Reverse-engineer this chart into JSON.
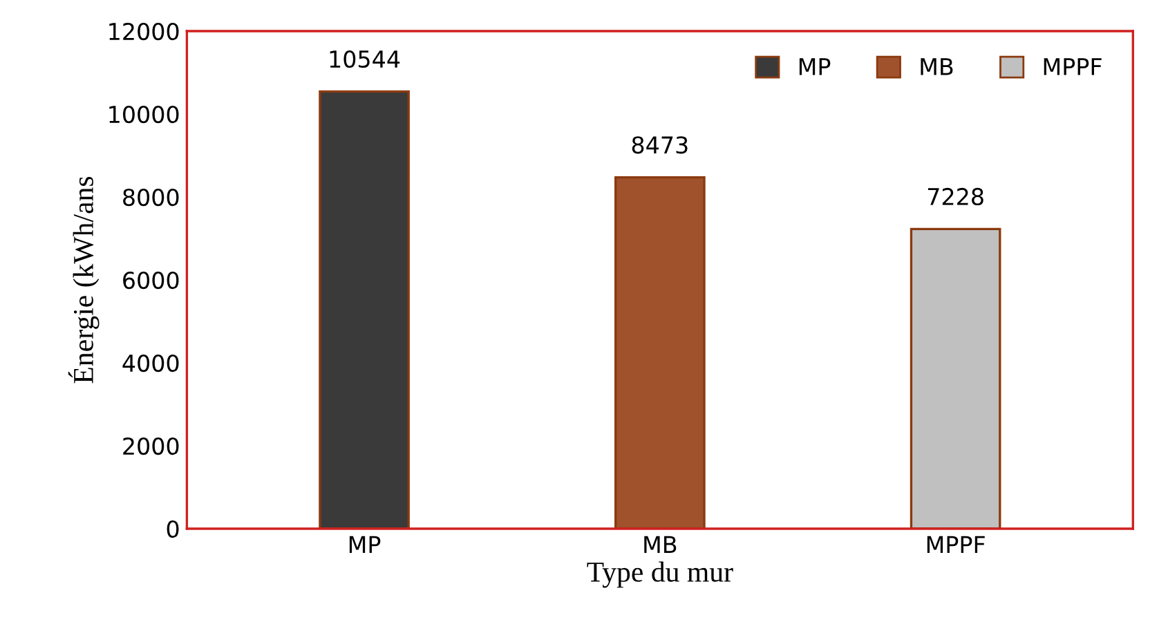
{
  "chart_data": {
    "type": "bar",
    "ylabel": "Énergie (kWh/ans",
    "xlabel": "Type du mur",
    "categories": [
      "MP",
      "MB",
      "MPPF"
    ],
    "series": [
      {
        "name": "MP",
        "color": "#3a3a3a",
        "values": [
          10544,
          null,
          null
        ]
      },
      {
        "name": "MB",
        "color": "#a0522d",
        "values": [
          null,
          8473,
          null
        ]
      },
      {
        "name": "MPPF",
        "color": "#c0c0c0",
        "values": [
          null,
          null,
          7228
        ]
      }
    ],
    "ylim": [
      0,
      12000
    ],
    "yticks": [
      0,
      2000,
      4000,
      6000,
      8000,
      10000,
      12000
    ],
    "grid": false,
    "legend": "top right",
    "data_labels": true
  }
}
